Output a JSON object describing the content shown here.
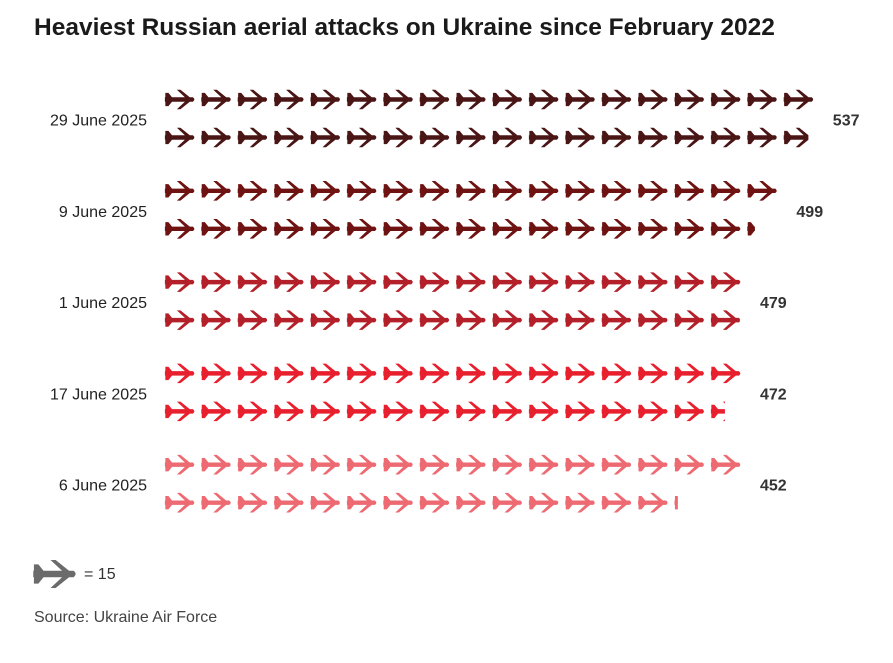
{
  "chart_data": {
    "type": "pictogram",
    "title": "Heaviest Russian aerial attacks on Ukraine since February 2022",
    "unit_per_icon": 15,
    "icon": "plane-icon",
    "categories": [
      "29 June 2025",
      "9 June 2025",
      "1 June 2025",
      "17 June 2025",
      "6 June 2025"
    ],
    "values": [
      537,
      499,
      479,
      472,
      452
    ],
    "colors": [
      "#4a1515",
      "#6e1212",
      "#b3202a",
      "#e8202e",
      "#ee6a72"
    ],
    "legend_icon_color": "#6b6b6b",
    "legend_label": "= 15",
    "source": "Source: Ukraine Air Force"
  }
}
